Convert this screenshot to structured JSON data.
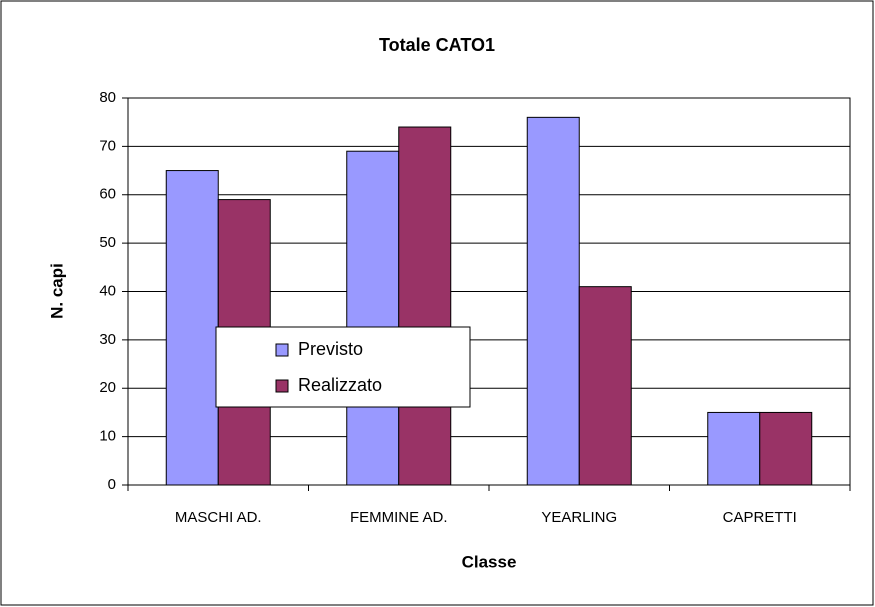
{
  "chart_data": {
    "type": "bar",
    "title": "Totale CATO1",
    "x_label": "Classe",
    "y_label": "N. capi",
    "categories": [
      "MASCHI AD.",
      "FEMMINE AD.",
      "YEARLING",
      "CAPRETTI"
    ],
    "series": [
      {
        "name": "Previsto",
        "color": "#9999ff",
        "values": [
          65,
          69,
          76,
          15
        ]
      },
      {
        "name": "Realizzato",
        "color": "#993366",
        "values": [
          59,
          74,
          41,
          15
        ]
      }
    ],
    "ylim": [
      0,
      80
    ],
    "yticks": [
      0,
      10,
      20,
      30,
      40,
      50,
      60,
      70,
      80
    ],
    "grid": true,
    "legend": "left"
  }
}
